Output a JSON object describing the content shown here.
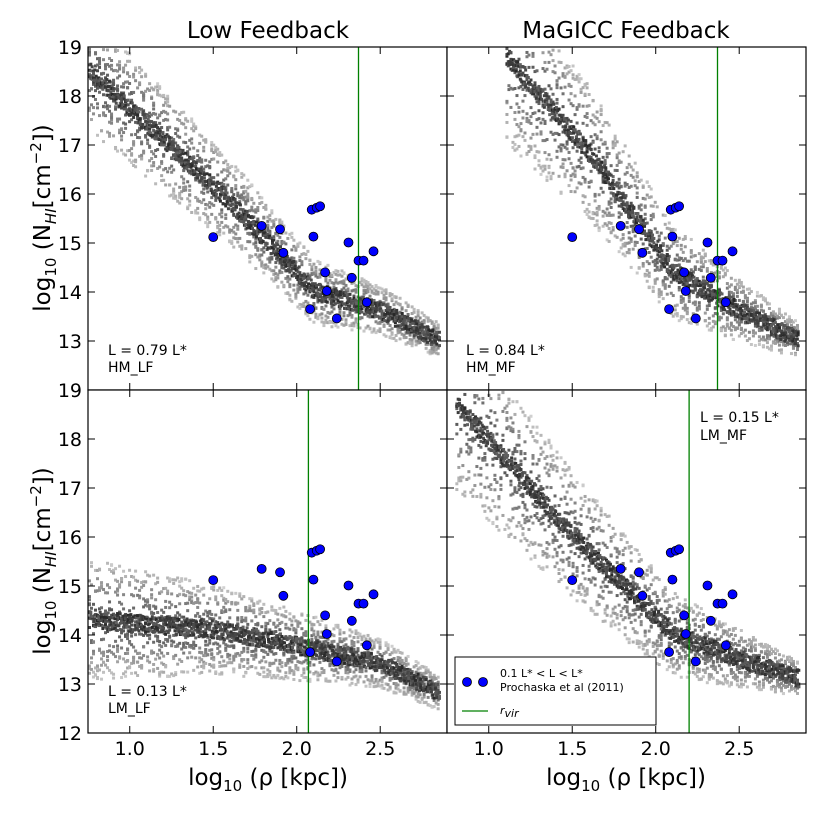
{
  "figure": {
    "column_titles": [
      "Low Feedback",
      "MaGICC Feedback"
    ],
    "ylabel_main": "log",
    "ylabel_sub": "10",
    "ylabel_rest_a": " (N",
    "ylabel_hi": "HI",
    "ylabel_rest_b": "[cm",
    "ylabel_exp": "−2",
    "ylabel_rest_c": "])",
    "xlabel_main": "log",
    "xlabel_sub": "10",
    "xlabel_rest": " (ρ [kpc])",
    "colors": {
      "observations": "#0000ff",
      "rvir_line": "#008000",
      "frame": "#000000",
      "simulation_density": "#444444"
    }
  },
  "legend": {
    "observations_label_line1": "0.1 L* < L < L*",
    "observations_label_line2": "Prochaska et al (2011)",
    "rvir_label": "r",
    "rvir_sub": "vir"
  },
  "chart_data": [
    {
      "type": "scatter",
      "panel": "top-left",
      "title": "Low Feedback",
      "xlabel": "log10 (ρ [kpc])",
      "ylabel": "log10 (N_HI [cm^-2])",
      "xlim": [
        0.75,
        2.9
      ],
      "ylim": [
        12,
        19
      ],
      "xticks": [
        "1.0",
        "1.5",
        "2.0",
        "2.5"
      ],
      "yticks": [
        "19",
        "18",
        "17",
        "16",
        "15",
        "14",
        "13"
      ],
      "annotation_line1": "L = 0.79 L*",
      "annotation_line2": "HM_LF",
      "annotation_position": "bottom-left",
      "rvir": 2.37,
      "observations": {
        "name": "0.1 L* < L < L* Prochaska et al (2011)",
        "x": [
          1.5,
          1.79,
          1.9,
          1.92,
          2.09,
          2.1,
          2.12,
          2.14,
          2.17,
          2.18,
          2.08,
          2.24,
          2.31,
          2.33,
          2.37,
          2.4,
          2.42,
          2.46
        ],
        "y": [
          15.12,
          15.35,
          15.28,
          14.8,
          15.68,
          15.13,
          15.72,
          15.75,
          14.4,
          14.02,
          13.65,
          13.46,
          15.01,
          14.29,
          14.64,
          14.64,
          13.79,
          14.83
        ]
      },
      "simulation": {
        "trend_x": [
          0.75,
          1.6,
          2.1,
          2.5,
          2.85
        ],
        "trend_y": [
          18.5,
          15.8,
          14.0,
          13.6,
          13.0
        ]
      }
    },
    {
      "type": "scatter",
      "panel": "top-right",
      "title": "MaGICC Feedback",
      "xlim": [
        0.75,
        2.9
      ],
      "ylim": [
        12,
        19
      ],
      "annotation_line1": "L = 0.84 L*",
      "annotation_line2": "HM_MF",
      "annotation_position": "bottom-left",
      "rvir": 2.37,
      "observations": {
        "name": "0.1 L* < L < L* Prochaska et al (2011)",
        "x": [
          1.5,
          1.79,
          1.9,
          1.92,
          2.09,
          2.1,
          2.12,
          2.14,
          2.17,
          2.18,
          2.08,
          2.24,
          2.31,
          2.33,
          2.37,
          2.4,
          2.42,
          2.46
        ],
        "y": [
          15.12,
          15.35,
          15.28,
          14.8,
          15.68,
          15.13,
          15.72,
          15.75,
          14.4,
          14.02,
          13.65,
          13.46,
          15.01,
          14.29,
          14.64,
          14.64,
          13.79,
          14.83
        ]
      },
      "simulation": {
        "trend_x": [
          1.1,
          1.6,
          2.1,
          2.5,
          2.85
        ],
        "trend_y": [
          18.8,
          16.8,
          14.4,
          13.6,
          13.0
        ]
      }
    },
    {
      "type": "scatter",
      "panel": "bottom-left",
      "xlabel": "log10 (ρ [kpc])",
      "ylabel": "log10 (N_HI [cm^-2])",
      "xlim": [
        0.75,
        2.9
      ],
      "ylim": [
        12,
        19
      ],
      "xticks": [
        "1.0",
        "1.5",
        "2.0",
        "2.5"
      ],
      "yticks": [
        "19",
        "18",
        "17",
        "16",
        "15",
        "14",
        "13",
        "12"
      ],
      "annotation_line1": "L = 0.13 L*",
      "annotation_line2": "LM_LF",
      "annotation_position": "bottom-left",
      "rvir": 2.07,
      "observations": {
        "name": "0.1 L* < L < L* Prochaska et al (2011)",
        "x": [
          1.5,
          1.79,
          1.9,
          1.92,
          2.09,
          2.1,
          2.12,
          2.14,
          2.17,
          2.18,
          2.08,
          2.24,
          2.31,
          2.33,
          2.37,
          2.4,
          2.42,
          2.46
        ],
        "y": [
          15.12,
          15.35,
          15.28,
          14.8,
          15.68,
          15.13,
          15.72,
          15.75,
          14.4,
          14.02,
          13.65,
          13.46,
          15.01,
          14.29,
          14.64,
          14.64,
          13.79,
          14.83
        ]
      },
      "simulation": {
        "trend_x": [
          0.75,
          1.5,
          2.1,
          2.5,
          2.85
        ],
        "trend_y": [
          14.3,
          14.1,
          13.7,
          13.4,
          12.8
        ]
      }
    },
    {
      "type": "scatter",
      "panel": "bottom-right",
      "xlabel": "log10 (ρ [kpc])",
      "xlim": [
        0.75,
        2.9
      ],
      "ylim": [
        12,
        19
      ],
      "xticks": [
        "1.0",
        "1.5",
        "2.0",
        "2.5"
      ],
      "annotation_line1": "L = 0.15 L*",
      "annotation_line2": "LM_MF",
      "annotation_position": "top-right",
      "legend_position": "bottom-left",
      "rvir": 2.2,
      "observations": {
        "name": "0.1 L* < L < L* Prochaska et al (2011)",
        "x": [
          1.5,
          1.79,
          1.9,
          1.92,
          2.09,
          2.1,
          2.12,
          2.14,
          2.17,
          2.18,
          2.08,
          2.24,
          2.31,
          2.33,
          2.37,
          2.4,
          2.42,
          2.46
        ],
        "y": [
          15.12,
          15.35,
          15.28,
          14.8,
          15.68,
          15.13,
          15.72,
          15.75,
          14.4,
          14.02,
          13.65,
          13.46,
          15.01,
          14.29,
          14.64,
          14.64,
          13.79,
          14.83
        ]
      },
      "simulation": {
        "trend_x": [
          0.8,
          1.5,
          2.1,
          2.5,
          2.85
        ],
        "trend_y": [
          18.7,
          16.0,
          14.0,
          13.5,
          13.1
        ]
      }
    }
  ]
}
